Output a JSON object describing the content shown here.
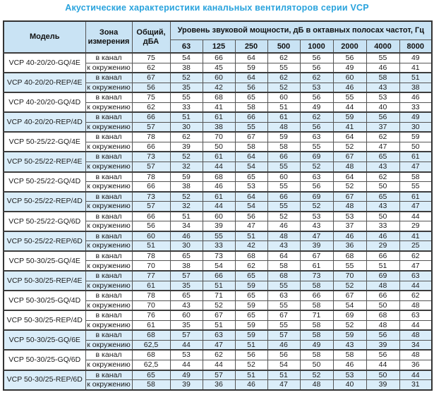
{
  "title": "Акустические характеристики канальных вентиляторов  серии VCP",
  "table": {
    "headers": {
      "model": "Модель",
      "zone": "Зона\nизмерения",
      "total": "Общий,\nдБА",
      "spl": "Уровень звуковой мощности, дБ в октавных полосах частот, Гц",
      "frequencies": [
        "63",
        "125",
        "250",
        "500",
        "1000",
        "2000",
        "4000",
        "8000"
      ]
    },
    "zone_labels": {
      "duct": "в канал",
      "ambient": "к окружению"
    },
    "rows": [
      {
        "model": "VCP 40-20/20-GQ/4E",
        "shaded": false,
        "duct": {
          "total": "75",
          "values": [
            "54",
            "66",
            "64",
            "62",
            "56",
            "56",
            "55",
            "49"
          ]
        },
        "ambient": {
          "total": "62",
          "values": [
            "38",
            "45",
            "59",
            "55",
            "56",
            "49",
            "46",
            "41"
          ]
        }
      },
      {
        "model": "VCP 40-20/20-REP/4E",
        "shaded": true,
        "duct": {
          "total": "67",
          "values": [
            "52",
            "60",
            "64",
            "62",
            "62",
            "60",
            "58",
            "51"
          ]
        },
        "ambient": {
          "total": "56",
          "values": [
            "35",
            "42",
            "56",
            "52",
            "53",
            "46",
            "43",
            "38"
          ]
        }
      },
      {
        "model": "VCP 40-20/20-GQ/4D",
        "shaded": false,
        "duct": {
          "total": "75",
          "values": [
            "55",
            "68",
            "65",
            "60",
            "56",
            "55",
            "53",
            "46"
          ]
        },
        "ambient": {
          "total": "62",
          "values": [
            "33",
            "41",
            "58",
            "51",
            "49",
            "44",
            "40",
            "33"
          ]
        }
      },
      {
        "model": "VCP 40-20/20-REP/4D",
        "shaded": true,
        "duct": {
          "total": "66",
          "values": [
            "51",
            "61",
            "66",
            "61",
            "62",
            "59",
            "56",
            "49"
          ]
        },
        "ambient": {
          "total": "57",
          "values": [
            "30",
            "38",
            "55",
            "48",
            "56",
            "41",
            "37",
            "30"
          ]
        }
      },
      {
        "model": "VCP 50-25/22-GQ/4E",
        "shaded": false,
        "duct": {
          "total": "78",
          "values": [
            "62",
            "70",
            "67",
            "59",
            "63",
            "64",
            "62",
            "59"
          ]
        },
        "ambient": {
          "total": "66",
          "values": [
            "39",
            "50",
            "58",
            "58",
            "55",
            "52",
            "47",
            "50"
          ]
        }
      },
      {
        "model": "VCP 50-25/22-REP/4E",
        "shaded": true,
        "duct": {
          "total": "73",
          "values": [
            "52",
            "61",
            "64",
            "66",
            "69",
            "67",
            "65",
            "61"
          ]
        },
        "ambient": {
          "total": "57",
          "values": [
            "32",
            "44",
            "54",
            "55",
            "52",
            "48",
            "43",
            "47"
          ]
        }
      },
      {
        "model": "VCP 50-25/22-GQ/4D",
        "shaded": false,
        "duct": {
          "total": "78",
          "values": [
            "59",
            "68",
            "65",
            "60",
            "63",
            "64",
            "62",
            "58"
          ]
        },
        "ambient": {
          "total": "66",
          "values": [
            "38",
            "46",
            "53",
            "55",
            "56",
            "52",
            "50",
            "55"
          ]
        }
      },
      {
        "model": "VCP 50-25/22-REP/4D",
        "shaded": true,
        "duct": {
          "total": "73",
          "values": [
            "52",
            "61",
            "64",
            "66",
            "69",
            "67",
            "65",
            "61"
          ]
        },
        "ambient": {
          "total": "57",
          "values": [
            "32",
            "44",
            "54",
            "55",
            "52",
            "48",
            "43",
            "47"
          ]
        }
      },
      {
        "model": "VCP 50-25/22-GQ/6D",
        "shaded": false,
        "duct": {
          "total": "66",
          "values": [
            "51",
            "60",
            "56",
            "52",
            "53",
            "53",
            "50",
            "44"
          ]
        },
        "ambient": {
          "total": "56",
          "values": [
            "34",
            "39",
            "47",
            "46",
            "43",
            "37",
            "33",
            "29"
          ]
        }
      },
      {
        "model": "VCP 50-25/22-REP/6D",
        "shaded": true,
        "duct": {
          "total": "60",
          "values": [
            "46",
            "55",
            "51",
            "48",
            "47",
            "46",
            "46",
            "41"
          ]
        },
        "ambient": {
          "total": "51",
          "values": [
            "30",
            "33",
            "42",
            "43",
            "39",
            "36",
            "29",
            "25"
          ]
        }
      },
      {
        "model": "VCP 50-30/25-GQ/4E",
        "shaded": false,
        "duct": {
          "total": "78",
          "values": [
            "65",
            "73",
            "68",
            "64",
            "67",
            "68",
            "66",
            "62"
          ]
        },
        "ambient": {
          "total": "70",
          "values": [
            "38",
            "54",
            "62",
            "58",
            "61",
            "55",
            "51",
            "47"
          ]
        }
      },
      {
        "model": "VCP 50-30/25-REP/4E",
        "shaded": true,
        "duct": {
          "total": "77",
          "values": [
            "57",
            "66",
            "65",
            "68",
            "73",
            "70",
            "69",
            "63"
          ]
        },
        "ambient": {
          "total": "61",
          "values": [
            "35",
            "51",
            "59",
            "55",
            "58",
            "52",
            "48",
            "44"
          ]
        }
      },
      {
        "model": "VCP 50-30/25-GQ/4D",
        "shaded": false,
        "duct": {
          "total": "78",
          "values": [
            "65",
            "71",
            "65",
            "63",
            "66",
            "67",
            "66",
            "62"
          ]
        },
        "ambient": {
          "total": "70",
          "values": [
            "43",
            "52",
            "59",
            "55",
            "58",
            "54",
            "50",
            "48"
          ]
        }
      },
      {
        "model": "VCP 50-30/25-REP/4D",
        "shaded": false,
        "duct": {
          "total": "76",
          "values": [
            "60",
            "67",
            "65",
            "67",
            "71",
            "69",
            "68",
            "63"
          ]
        },
        "ambient": {
          "total": "61",
          "values": [
            "35",
            "51",
            "59",
            "55",
            "58",
            "52",
            "48",
            "44"
          ]
        }
      },
      {
        "model": "VCP 50-30/25-GQ/6E",
        "shaded": true,
        "duct": {
          "total": "68",
          "values": [
            "57",
            "63",
            "59",
            "57",
            "58",
            "59",
            "56",
            "48"
          ]
        },
        "ambient": {
          "total": "62,5",
          "values": [
            "44",
            "47",
            "51",
            "46",
            "49",
            "43",
            "39",
            "34"
          ]
        }
      },
      {
        "model": "VCP 50-30/25-GQ/6D",
        "shaded": false,
        "duct": {
          "total": "68",
          "values": [
            "53",
            "62",
            "56",
            "56",
            "58",
            "58",
            "56",
            "48"
          ]
        },
        "ambient": {
          "total": "62,5",
          "values": [
            "44",
            "44",
            "52",
            "54",
            "50",
            "46",
            "44",
            "36"
          ]
        }
      },
      {
        "model": "VCP 50-30/25-REP/6D",
        "shaded": true,
        "duct": {
          "total": "65",
          "values": [
            "49",
            "57",
            "51",
            "51",
            "52",
            "53",
            "50",
            "44"
          ]
        },
        "ambient": {
          "total": "58",
          "values": [
            "39",
            "36",
            "46",
            "47",
            "48",
            "40",
            "39",
            "31"
          ]
        }
      }
    ]
  },
  "colors": {
    "title": "#29a3dd",
    "header_bg": "#c9e3f4",
    "stripe_bg": "#daedf9",
    "row_bg": "#ffffff",
    "border": "#555555"
  }
}
